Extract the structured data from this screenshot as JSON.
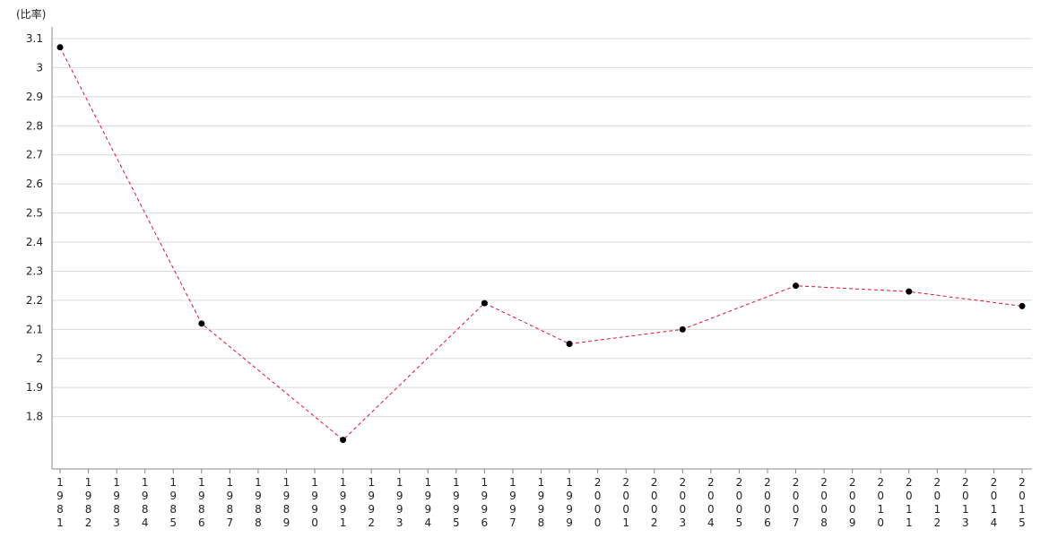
{
  "chart_data": {
    "type": "line",
    "ylabel": "(比率)",
    "categories": [
      "1981",
      "1982",
      "1983",
      "1984",
      "1985",
      "1986",
      "1987",
      "1988",
      "1989",
      "1990",
      "1991",
      "1992",
      "1993",
      "1994",
      "1995",
      "1996",
      "1997",
      "1998",
      "1999",
      "2000",
      "2001",
      "2002",
      "2003",
      "2004",
      "2005",
      "2006",
      "2007",
      "2008",
      "2009",
      "2010",
      "2011",
      "2012",
      "2013",
      "2014",
      "2015"
    ],
    "yticks": [
      "1.8",
      "1.9",
      "2",
      "2.1",
      "2.2",
      "2.3",
      "2.4",
      "2.5",
      "2.6",
      "2.7",
      "2.8",
      "2.9",
      "3",
      "3.1"
    ],
    "ylim": [
      1.62,
      3.14
    ],
    "grid": true,
    "series": [
      {
        "color": "#dc143c",
        "line_style": "dashed",
        "marker_color": "#000000",
        "points": [
          {
            "x": "1981",
            "y": 3.07
          },
          {
            "x": "1986",
            "y": 2.12
          },
          {
            "x": "1991",
            "y": 1.72
          },
          {
            "x": "1996",
            "y": 2.19
          },
          {
            "x": "1999",
            "y": 2.05
          },
          {
            "x": "2003",
            "y": 2.1
          },
          {
            "x": "2007",
            "y": 2.25
          },
          {
            "x": "2011",
            "y": 2.23
          },
          {
            "x": "2015",
            "y": 2.18
          }
        ]
      }
    ]
  }
}
